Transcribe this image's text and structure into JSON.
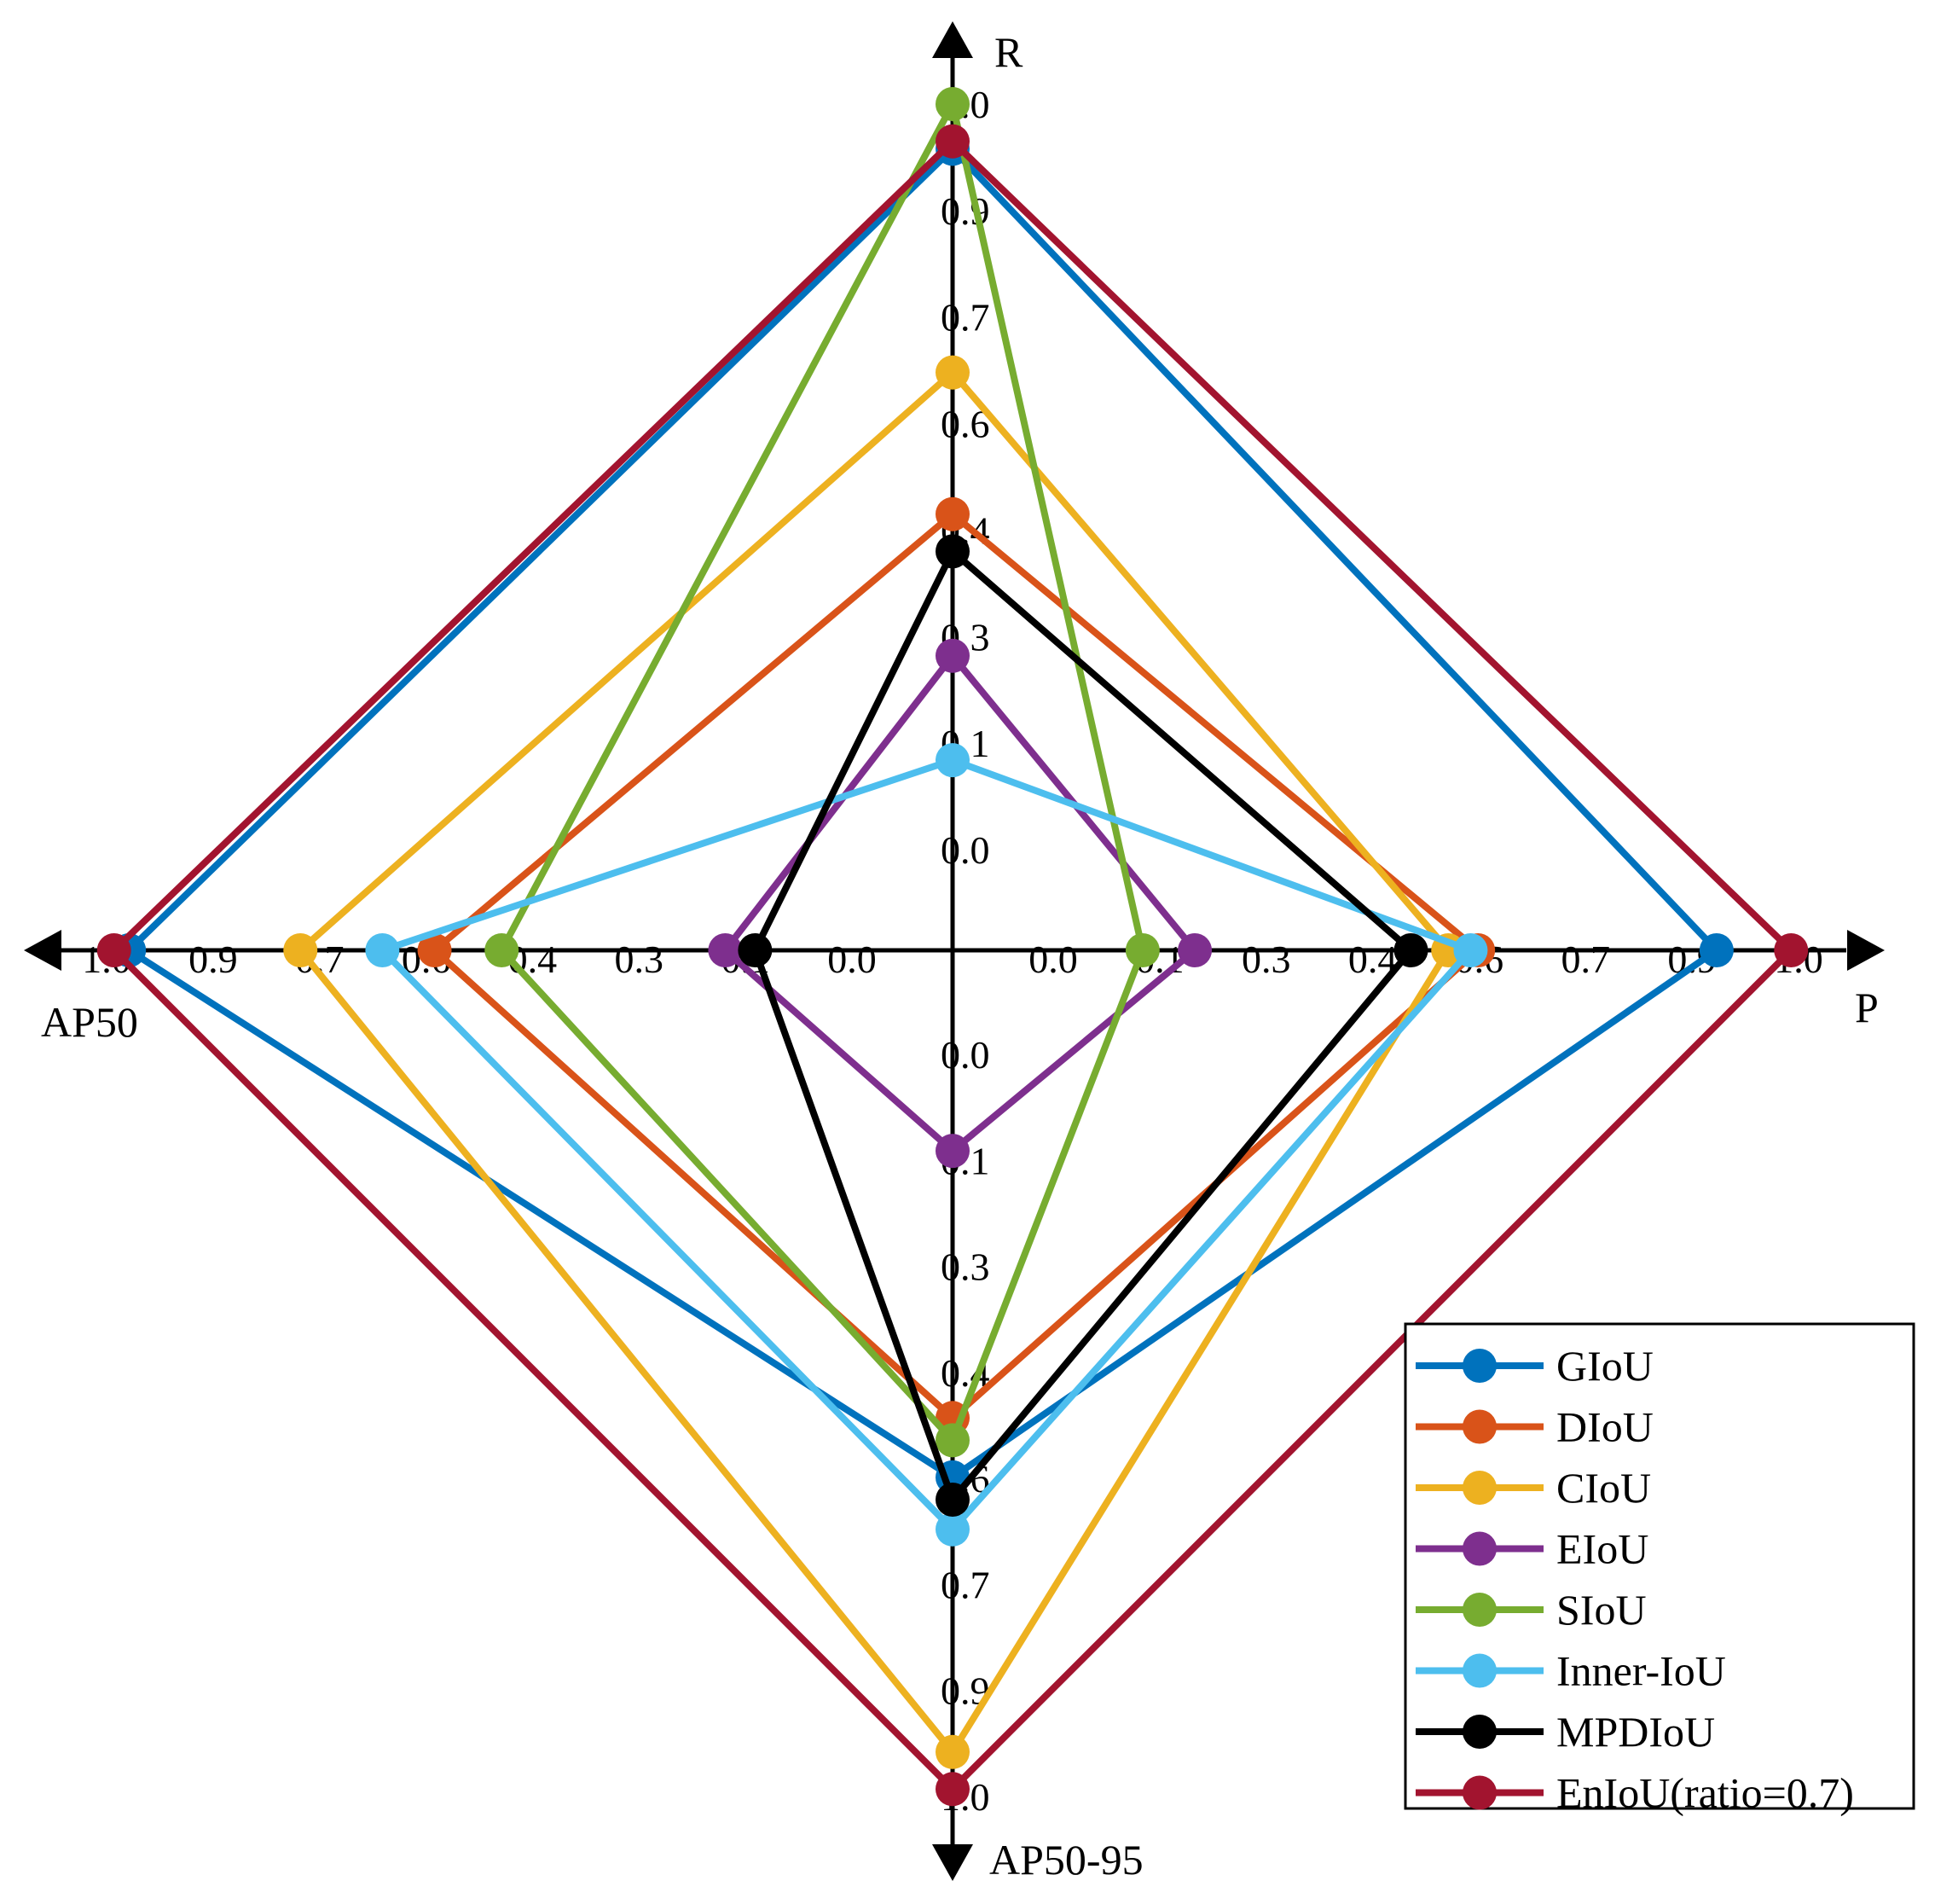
{
  "chart_data": {
    "type": "radar",
    "title": "",
    "axes": [
      {
        "key": "R",
        "label": "R",
        "direction": "up",
        "ticks": [
          "0.0",
          "0.1",
          "0.3",
          "0.4",
          "0.6",
          "0.7",
          "0.9",
          "1.0"
        ]
      },
      {
        "key": "P",
        "label": "P",
        "direction": "right",
        "ticks": [
          "0.0",
          "0.1",
          "0.3",
          "0.4",
          "0.6",
          "0.7",
          "0.9",
          "1.0"
        ]
      },
      {
        "key": "AP50-95",
        "label": "AP50-95",
        "direction": "down",
        "ticks": [
          "0.0",
          "0.1",
          "0.3",
          "0.4",
          "0.6",
          "0.7",
          "0.9",
          "1.0"
        ]
      },
      {
        "key": "AP50",
        "label": "AP50",
        "direction": "left",
        "ticks": [
          "0.0",
          "0.1",
          "0.3",
          "0.4",
          "0.6",
          "0.7",
          "0.9",
          "1.0"
        ]
      }
    ],
    "range": [
      0,
      1
    ],
    "legend_position": "bottom-right",
    "series": [
      {
        "name": "GIoU",
        "color": "#0072BD",
        "values": {
          "R": 0.94,
          "P": 0.89,
          "AP50-95": 0.57,
          "AP50": 0.97
        }
      },
      {
        "name": "DIoU",
        "color": "#D95319",
        "values": {
          "R": 0.45,
          "P": 0.57,
          "AP50-95": 0.49,
          "AP50": 0.56
        }
      },
      {
        "name": "CIoU",
        "color": "#EDB120",
        "values": {
          "R": 0.64,
          "P": 0.53,
          "AP50-95": 0.94,
          "AP50": 0.74
        }
      },
      {
        "name": "EIoU",
        "color": "#7E2F8E",
        "values": {
          "R": 0.26,
          "P": 0.19,
          "AP50-95": 0.13,
          "AP50": 0.17
        }
      },
      {
        "name": "SIoU",
        "color": "#77AC30",
        "values": {
          "R": 1.0,
          "P": 0.12,
          "AP50-95": 0.52,
          "AP50": 0.47
        }
      },
      {
        "name": "Inner-IoU",
        "color": "#4DBEEE",
        "values": {
          "R": 0.12,
          "P": 0.56,
          "AP50-95": 0.64,
          "AP50": 0.63
        }
      },
      {
        "name": "MPDIoU",
        "color": "#000000",
        "values": {
          "R": 0.4,
          "P": 0.48,
          "AP50-95": 0.6,
          "AP50": 0.13
        }
      },
      {
        "name": "EnIoU(ratio=0.7)",
        "color": "#A2142F",
        "values": {
          "R": 0.95,
          "P": 0.99,
          "AP50-95": 0.99,
          "AP50": 0.99
        }
      }
    ]
  }
}
